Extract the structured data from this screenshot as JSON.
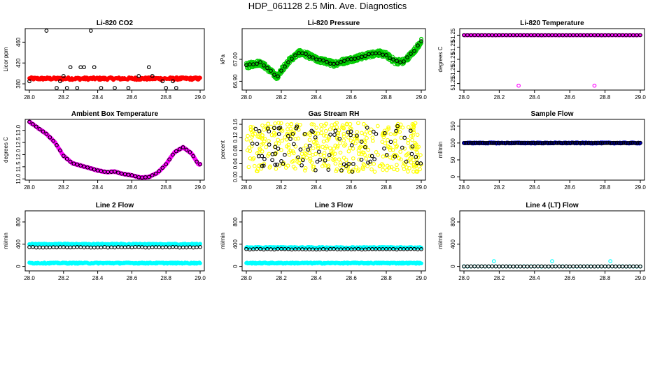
{
  "figure": {
    "title": "HDP_061128  2.5 Min. Ave. Diagnostics"
  },
  "colors": {
    "black": "#000000",
    "red": "#ff0000",
    "green": "#00cc00",
    "magenta": "#ff00ff",
    "yellow": "#ffff00",
    "blue": "#0000ff",
    "cyan": "#00ffff"
  },
  "chart_data": [
    {
      "id": "co2",
      "type": "scatter",
      "title": "Li-820 CO2",
      "ylabel": "Licor ppm",
      "xlim": [
        28.0,
        29.0
      ],
      "ylim": [
        368,
        486
      ],
      "xticks": [
        "28.0",
        "28.2",
        "28.4",
        "28.6",
        "28.8",
        "29.0"
      ],
      "yticks": [
        "380",
        "420",
        "460"
      ],
      "series": [
        {
          "name": "fill",
          "color": "red",
          "filled": true,
          "shape": "band",
          "y": 390,
          "spread": 2.5
        },
        {
          "name": "overlay",
          "color": "black",
          "filled": false,
          "shape": "levels",
          "levels": [
            372,
            385,
            395,
            412,
            482
          ],
          "step": 0.02
        }
      ]
    },
    {
      "id": "pressure",
      "type": "scatter",
      "title": "Li-820 Pressure",
      "ylabel": "kPa",
      "xlim": [
        28.0,
        29.0
      ],
      "ylim": [
        66.86,
        67.14
      ],
      "xticks": [
        "28.0",
        "28.2",
        "28.4",
        "28.6",
        "28.8",
        "29.0"
      ],
      "yticks": [
        "66.90",
        "67.00"
      ],
      "series": [
        {
          "name": "fill",
          "color": "green",
          "filled": false,
          "shape": "trace",
          "spread": 0.014,
          "path": [
            [
              28.0,
              66.97
            ],
            [
              28.05,
              66.98
            ],
            [
              28.08,
              66.985
            ],
            [
              28.12,
              66.96
            ],
            [
              28.16,
              66.93
            ],
            [
              28.18,
              66.92
            ],
            [
              28.2,
              66.95
            ],
            [
              28.24,
              66.99
            ],
            [
              28.3,
              67.03
            ],
            [
              28.35,
              67.02
            ],
            [
              28.4,
              67.0
            ],
            [
              28.45,
              66.99
            ],
            [
              28.5,
              66.98
            ],
            [
              28.55,
              66.99
            ],
            [
              28.6,
              67.0
            ],
            [
              28.65,
              67.01
            ],
            [
              28.7,
              67.02
            ],
            [
              28.75,
              67.03
            ],
            [
              28.8,
              67.02
            ],
            [
              28.85,
              66.99
            ],
            [
              28.9,
              66.99
            ],
            [
              28.95,
              67.03
            ],
            [
              29.0,
              67.08
            ]
          ]
        },
        {
          "name": "overlay",
          "color": "black",
          "filled": false,
          "shape": "trace",
          "spread": 0.004,
          "step": 0.02,
          "path": [
            [
              28.0,
              66.97
            ],
            [
              28.05,
              66.98
            ],
            [
              28.08,
              66.985
            ],
            [
              28.12,
              66.96
            ],
            [
              28.16,
              66.93
            ],
            [
              28.18,
              66.92
            ],
            [
              28.2,
              66.95
            ],
            [
              28.24,
              66.99
            ],
            [
              28.3,
              67.03
            ],
            [
              28.35,
              67.02
            ],
            [
              28.4,
              67.0
            ],
            [
              28.45,
              66.99
            ],
            [
              28.5,
              66.98
            ],
            [
              28.55,
              66.99
            ],
            [
              28.6,
              67.0
            ],
            [
              28.65,
              67.01
            ],
            [
              28.7,
              67.02
            ],
            [
              28.75,
              67.03
            ],
            [
              28.8,
              67.02
            ],
            [
              28.85,
              66.99
            ],
            [
              28.9,
              66.99
            ],
            [
              28.95,
              67.03
            ],
            [
              29.0,
              67.08
            ]
          ]
        }
      ]
    },
    {
      "id": "temp",
      "type": "scatter",
      "title": "Li-820 Temperature",
      "ylabel": "degrees C",
      "xlim": [
        28.0,
        29.0
      ],
      "ylim": [
        51.247,
        51.261
      ],
      "xticks": [
        "28.0",
        "28.2",
        "28.4",
        "28.6",
        "28.8",
        "29.0"
      ],
      "yticks": [
        "51.25",
        "51.25",
        "51.25",
        "51.25",
        "51.25"
      ],
      "series": [
        {
          "name": "fill",
          "color": "magenta",
          "filled": false,
          "shape": "band",
          "y": 51.2595,
          "spread": 1e-05,
          "outliers": [
            [
              28.31,
              51.248
            ],
            [
              28.74,
              51.248
            ]
          ]
        },
        {
          "name": "overlay",
          "color": "black",
          "filled": false,
          "shape": "band",
          "y": 51.2595,
          "spread": 1e-05,
          "step": 0.02
        }
      ]
    },
    {
      "id": "box",
      "type": "scatter",
      "title": "Ambient Box Temperature",
      "ylabel": "degrees C",
      "xlim": [
        28.0,
        29.0
      ],
      "ylim": [
        10.95,
        13.45
      ],
      "xticks": [
        "28.0",
        "28.2",
        "28.4",
        "28.6",
        "28.8",
        "29.0"
      ],
      "yticks": [
        "11.0",
        "11.5",
        "12.0",
        "12.5",
        "13.0"
      ],
      "series": [
        {
          "name": "fill",
          "color": "magenta",
          "filled": true,
          "shape": "trace",
          "spread": 0.02,
          "path": [
            [
              28.0,
              13.35
            ],
            [
              28.05,
              13.1
            ],
            [
              28.1,
              12.85
            ],
            [
              28.15,
              12.5
            ],
            [
              28.2,
              11.95
            ],
            [
              28.25,
              11.65
            ],
            [
              28.3,
              11.55
            ],
            [
              28.35,
              11.45
            ],
            [
              28.4,
              11.35
            ],
            [
              28.45,
              11.28
            ],
            [
              28.5,
              11.3
            ],
            [
              28.55,
              11.2
            ],
            [
              28.6,
              11.15
            ],
            [
              28.65,
              11.05
            ],
            [
              28.7,
              11.08
            ],
            [
              28.75,
              11.25
            ],
            [
              28.8,
              11.6
            ],
            [
              28.85,
              12.1
            ],
            [
              28.9,
              12.3
            ],
            [
              28.95,
              12.05
            ],
            [
              28.99,
              11.6
            ]
          ]
        },
        {
          "name": "overlay",
          "color": "black",
          "filled": false,
          "shape": "trace",
          "spread": 0.0,
          "step": 0.02,
          "path": [
            [
              28.0,
              13.35
            ],
            [
              28.05,
              13.1
            ],
            [
              28.1,
              12.85
            ],
            [
              28.15,
              12.5
            ],
            [
              28.2,
              11.95
            ],
            [
              28.25,
              11.65
            ],
            [
              28.3,
              11.55
            ],
            [
              28.35,
              11.45
            ],
            [
              28.4,
              11.35
            ],
            [
              28.45,
              11.28
            ],
            [
              28.5,
              11.3
            ],
            [
              28.55,
              11.2
            ],
            [
              28.6,
              11.15
            ],
            [
              28.65,
              11.05
            ],
            [
              28.7,
              11.08
            ],
            [
              28.75,
              11.25
            ],
            [
              28.8,
              11.6
            ],
            [
              28.85,
              12.1
            ],
            [
              28.9,
              12.3
            ],
            [
              28.95,
              12.05
            ],
            [
              28.99,
              11.6
            ]
          ]
        }
      ]
    },
    {
      "id": "rh",
      "type": "scatter",
      "title": "Gas Stream RH",
      "ylabel": "percent",
      "xlim": [
        28.0,
        29.0
      ],
      "ylim": [
        -0.01,
        0.175
      ],
      "xticks": [
        "28.0",
        "28.2",
        "28.4",
        "28.6",
        "28.8",
        "29.0"
      ],
      "yticks": [
        "0.00",
        "0.04",
        "0.08",
        "0.12",
        "0.16"
      ],
      "series": [
        {
          "name": "fill",
          "color": "yellow",
          "filled": false,
          "shape": "cloud",
          "y": 0.09,
          "spread": 0.075,
          "count": 420
        },
        {
          "name": "overlay",
          "color": "black",
          "filled": false,
          "shape": "cloud",
          "y": 0.085,
          "spread": 0.07,
          "count": 90
        }
      ]
    },
    {
      "id": "sample",
      "type": "scatter",
      "title": "Sample Flow",
      "ylabel": "ml/min",
      "xlim": [
        28.0,
        29.0
      ],
      "ylim": [
        -10,
        170
      ],
      "xticks": [
        "28.0",
        "28.2",
        "28.4",
        "28.6",
        "28.8",
        "29.0"
      ],
      "yticks": [
        "0",
        "50",
        "100",
        "150"
      ],
      "series": [
        {
          "name": "fill",
          "color": "blue",
          "filled": true,
          "shape": "band",
          "y": 100,
          "spread": 1.5
        },
        {
          "name": "overlay",
          "color": "black",
          "filled": false,
          "shape": "band",
          "y": 100,
          "spread": 0.5,
          "step": 0.01
        }
      ]
    },
    {
      "id": "line2",
      "type": "scatter",
      "title": "Line 2 Flow",
      "ylabel": "ml/min",
      "xlim": [
        28.0,
        29.0
      ],
      "ylim": [
        -80,
        1000
      ],
      "xticks": [
        "28.0",
        "28.2",
        "28.4",
        "28.6",
        "28.8",
        "29.0"
      ],
      "yticks": [
        "0",
        "400",
        "800"
      ],
      "series": [
        {
          "name": "fill-high",
          "color": "cyan",
          "filled": true,
          "shape": "band",
          "y": 400,
          "spread": 10
        },
        {
          "name": "fill-low",
          "color": "cyan",
          "filled": true,
          "shape": "band",
          "y": 60,
          "spread": 10
        },
        {
          "name": "overlay",
          "color": "black",
          "filled": false,
          "shape": "band",
          "y": 345,
          "spread": 5,
          "step": 0.02
        }
      ]
    },
    {
      "id": "line3",
      "type": "scatter",
      "title": "Line 3 Flow",
      "ylabel": "ml/min",
      "xlim": [
        28.0,
        29.0
      ],
      "ylim": [
        -80,
        1000
      ],
      "xticks": [
        "28.0",
        "28.2",
        "28.4",
        "28.6",
        "28.8",
        "29.0"
      ],
      "yticks": [
        "0",
        "400",
        "800"
      ],
      "series": [
        {
          "name": "fill-high",
          "color": "cyan",
          "filled": true,
          "shape": "band",
          "y": 340,
          "spread": 10
        },
        {
          "name": "fill-low",
          "color": "cyan",
          "filled": true,
          "shape": "band",
          "y": 60,
          "spread": 10
        },
        {
          "name": "overlay",
          "color": "black",
          "filled": false,
          "shape": "band",
          "y": 310,
          "spread": 5,
          "step": 0.02
        }
      ]
    },
    {
      "id": "line4",
      "type": "scatter",
      "title": "Line 4 (LT) Flow",
      "ylabel": "ml/min",
      "xlim": [
        28.0,
        29.0
      ],
      "ylim": [
        -80,
        1000
      ],
      "xticks": [
        "28.0",
        "28.2",
        "28.4",
        "28.6",
        "28.8",
        "29.0"
      ],
      "yticks": [
        "0",
        "400",
        "800"
      ],
      "series": [
        {
          "name": "fill",
          "color": "cyan",
          "filled": false,
          "shape": "band",
          "y": 0,
          "spread": 2,
          "step": 0.02,
          "outliers": [
            [
              28.17,
              95
            ],
            [
              28.5,
              95
            ],
            [
              28.83,
              95
            ]
          ]
        },
        {
          "name": "overlay",
          "color": "black",
          "filled": false,
          "shape": "band",
          "y": 0,
          "spread": 1,
          "step": 0.02
        }
      ]
    }
  ]
}
